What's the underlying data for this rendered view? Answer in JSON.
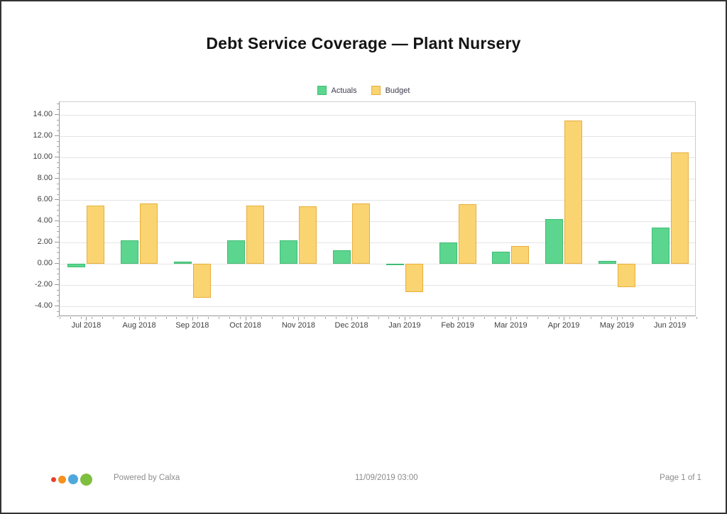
{
  "page": {
    "title": "Debt Service Coverage — Plant Nursery"
  },
  "chart_data": {
    "type": "bar",
    "title": "Debt Service Coverage — Plant Nursery",
    "categories": [
      "Jul 2018",
      "Aug 2018",
      "Sep 2018",
      "Oct 2018",
      "Nov 2018",
      "Dec 2018",
      "Jan 2019",
      "Feb 2019",
      "Mar 2019",
      "Apr 2019",
      "May 2019",
      "Jun 2019"
    ],
    "series": [
      {
        "name": "Actuals",
        "color": "#5cd68e",
        "border": "#3fbc74",
        "values": [
          -0.3,
          2.2,
          0.2,
          2.2,
          2.2,
          1.25,
          -0.1,
          2.0,
          1.15,
          4.2,
          0.25,
          3.4
        ]
      },
      {
        "name": "Budget",
        "color": "#fad470",
        "border": "#e8ae3c",
        "values": [
          5.5,
          5.65,
          -3.2,
          5.45,
          5.4,
          5.65,
          -2.65,
          5.6,
          1.7,
          13.5,
          -2.2,
          10.5
        ]
      }
    ],
    "xlabel": "",
    "ylabel": "",
    "ylim": [
      -5.0,
      15.2
    ],
    "y_ticks": [
      {
        "value": 14,
        "label": "14.00"
      },
      {
        "value": 12,
        "label": "12.00"
      },
      {
        "value": 10,
        "label": "10.00"
      },
      {
        "value": 8,
        "label": "8.00"
      },
      {
        "value": 6,
        "label": "6.00"
      },
      {
        "value": 4,
        "label": "4.00"
      },
      {
        "value": 2,
        "label": "2.00"
      },
      {
        "value": 0,
        "label": "0.00"
      },
      {
        "value": -2,
        "label": "-2.00"
      },
      {
        "value": -4,
        "label": "-4.00"
      }
    ],
    "y_minor_step": 0.5,
    "grid": "horizontal-major",
    "legend_position": "top-center"
  },
  "footer": {
    "powered_by": "Powered by Calxa",
    "timestamp": "11/09/2019 03:00",
    "page_label": "Page 1 of 1",
    "logo_colors": [
      "#e8402d",
      "#f5921e",
      "#4fa8dd",
      "#7fbf3f"
    ]
  }
}
